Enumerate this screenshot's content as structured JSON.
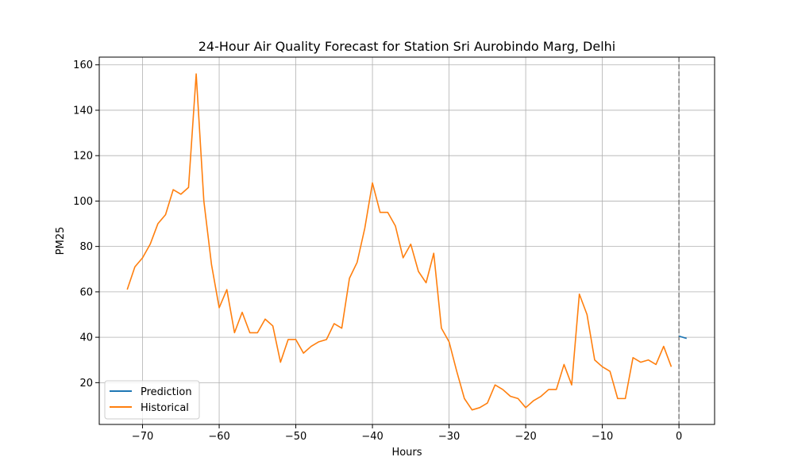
{
  "chart_data": {
    "type": "line",
    "title": "24-Hour Air Quality Forecast for Station Sri Aurobindo Marg, Delhi",
    "xlabel": "Hours",
    "ylabel": "PM25",
    "xlim": [
      -75.65,
      4.65
    ],
    "ylim": [
      1.6,
      163.4
    ],
    "xticks": [
      -70,
      -60,
      -50,
      -40,
      -30,
      -20,
      -10,
      0
    ],
    "yticks": [
      20,
      40,
      60,
      80,
      100,
      120,
      140,
      160
    ],
    "xtick_labels": [
      "−70",
      "−60",
      "−50",
      "−40",
      "−30",
      "−20",
      "−10",
      "0"
    ],
    "ytick_labels": [
      "20",
      "40",
      "60",
      "80",
      "100",
      "120",
      "140",
      "160"
    ],
    "grid": true,
    "legend_position": "lower-left",
    "vline": {
      "x": 0,
      "style": "dashed",
      "color": "#808080"
    },
    "series": [
      {
        "name": "Prediction",
        "color": "#1f77b4",
        "x": [
          0,
          1
        ],
        "y": [
          40.5,
          39.5
        ]
      },
      {
        "name": "Historical",
        "color": "#ff7f0e",
        "x": [
          -72,
          -71,
          -70,
          -69,
          -68,
          -67,
          -66,
          -65,
          -64,
          -63,
          -62,
          -61,
          -60,
          -59,
          -58,
          -57,
          -56,
          -55,
          -54,
          -53,
          -52,
          -51,
          -50,
          -49,
          -48,
          -47,
          -46,
          -45,
          -44,
          -43,
          -42,
          -41,
          -40,
          -39,
          -38,
          -37,
          -36,
          -35,
          -34,
          -33,
          -32,
          -31,
          -30,
          -29,
          -28,
          -27,
          -26,
          -25,
          -24,
          -23,
          -22,
          -21,
          -20,
          -19,
          -18,
          -17,
          -16,
          -15,
          -14,
          -13,
          -12,
          -11,
          -10,
          -9,
          -8,
          -7,
          -6,
          -5,
          -4,
          -3,
          -2,
          -1
        ],
        "y": [
          61,
          71,
          75,
          81,
          90,
          94,
          105,
          103,
          106,
          156,
          100,
          72,
          53,
          61,
          42,
          51,
          42,
          42,
          48,
          45,
          29,
          39,
          39,
          33,
          36,
          38,
          39,
          46,
          44,
          66,
          73,
          88,
          108,
          95,
          95,
          89,
          75,
          81,
          69,
          64,
          77,
          44,
          38,
          25,
          13,
          8,
          9,
          11,
          19,
          17,
          14,
          13,
          9,
          12,
          14,
          17,
          17,
          28,
          19,
          59,
          50,
          30,
          27,
          25,
          13,
          13,
          31,
          29,
          30,
          28,
          36,
          27
        ]
      }
    ]
  }
}
